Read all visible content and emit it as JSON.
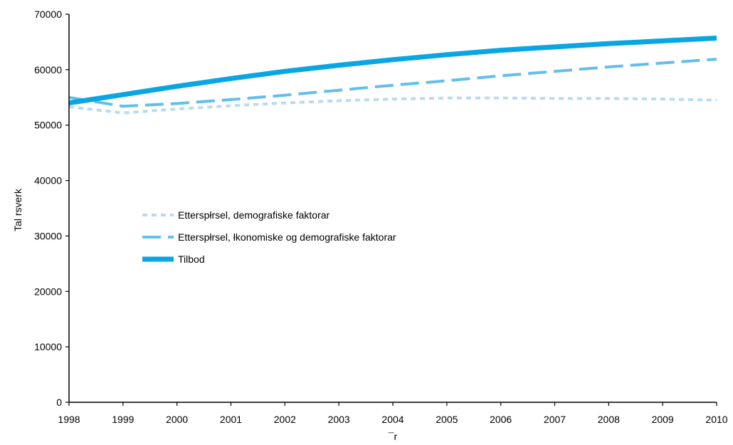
{
  "chart_data": {
    "type": "line",
    "title": "",
    "xlabel": "¯r",
    "ylabel": "Tal rsverk",
    "x": [
      "1998",
      "1999",
      "2000",
      "2001",
      "2002",
      "2003",
      "2004",
      "2005",
      "2006",
      "2007",
      "2008",
      "2009",
      "2010"
    ],
    "yticks": [
      "0",
      "10000",
      "20000",
      "30000",
      "40000",
      "50000",
      "60000",
      "70000"
    ],
    "ylim": [
      0,
      70000
    ],
    "grid": false,
    "legend_position": "center-left",
    "series": [
      {
        "name": "Etterspłrsel, demografiske faktorar",
        "values": [
          53300,
          52200,
          52900,
          53500,
          54000,
          54400,
          54700,
          54900,
          54900,
          54800,
          54800,
          54700,
          54500
        ],
        "color": "#b7dbf2",
        "style": "dotted"
      },
      {
        "name": "Etterspłrsel, łkonomiske og demografiske faktorar",
        "values": [
          55000,
          53400,
          53900,
          54600,
          55400,
          56300,
          57200,
          58000,
          58900,
          59700,
          60500,
          61200,
          61900
        ],
        "color": "#63bfe9",
        "style": "dashed"
      },
      {
        "name": "Tilbod",
        "values": [
          54000,
          55500,
          57000,
          58400,
          59700,
          60800,
          61800,
          62700,
          63500,
          64100,
          64700,
          65200,
          65700
        ],
        "color": "#0aa5e3",
        "style": "solid"
      }
    ]
  }
}
